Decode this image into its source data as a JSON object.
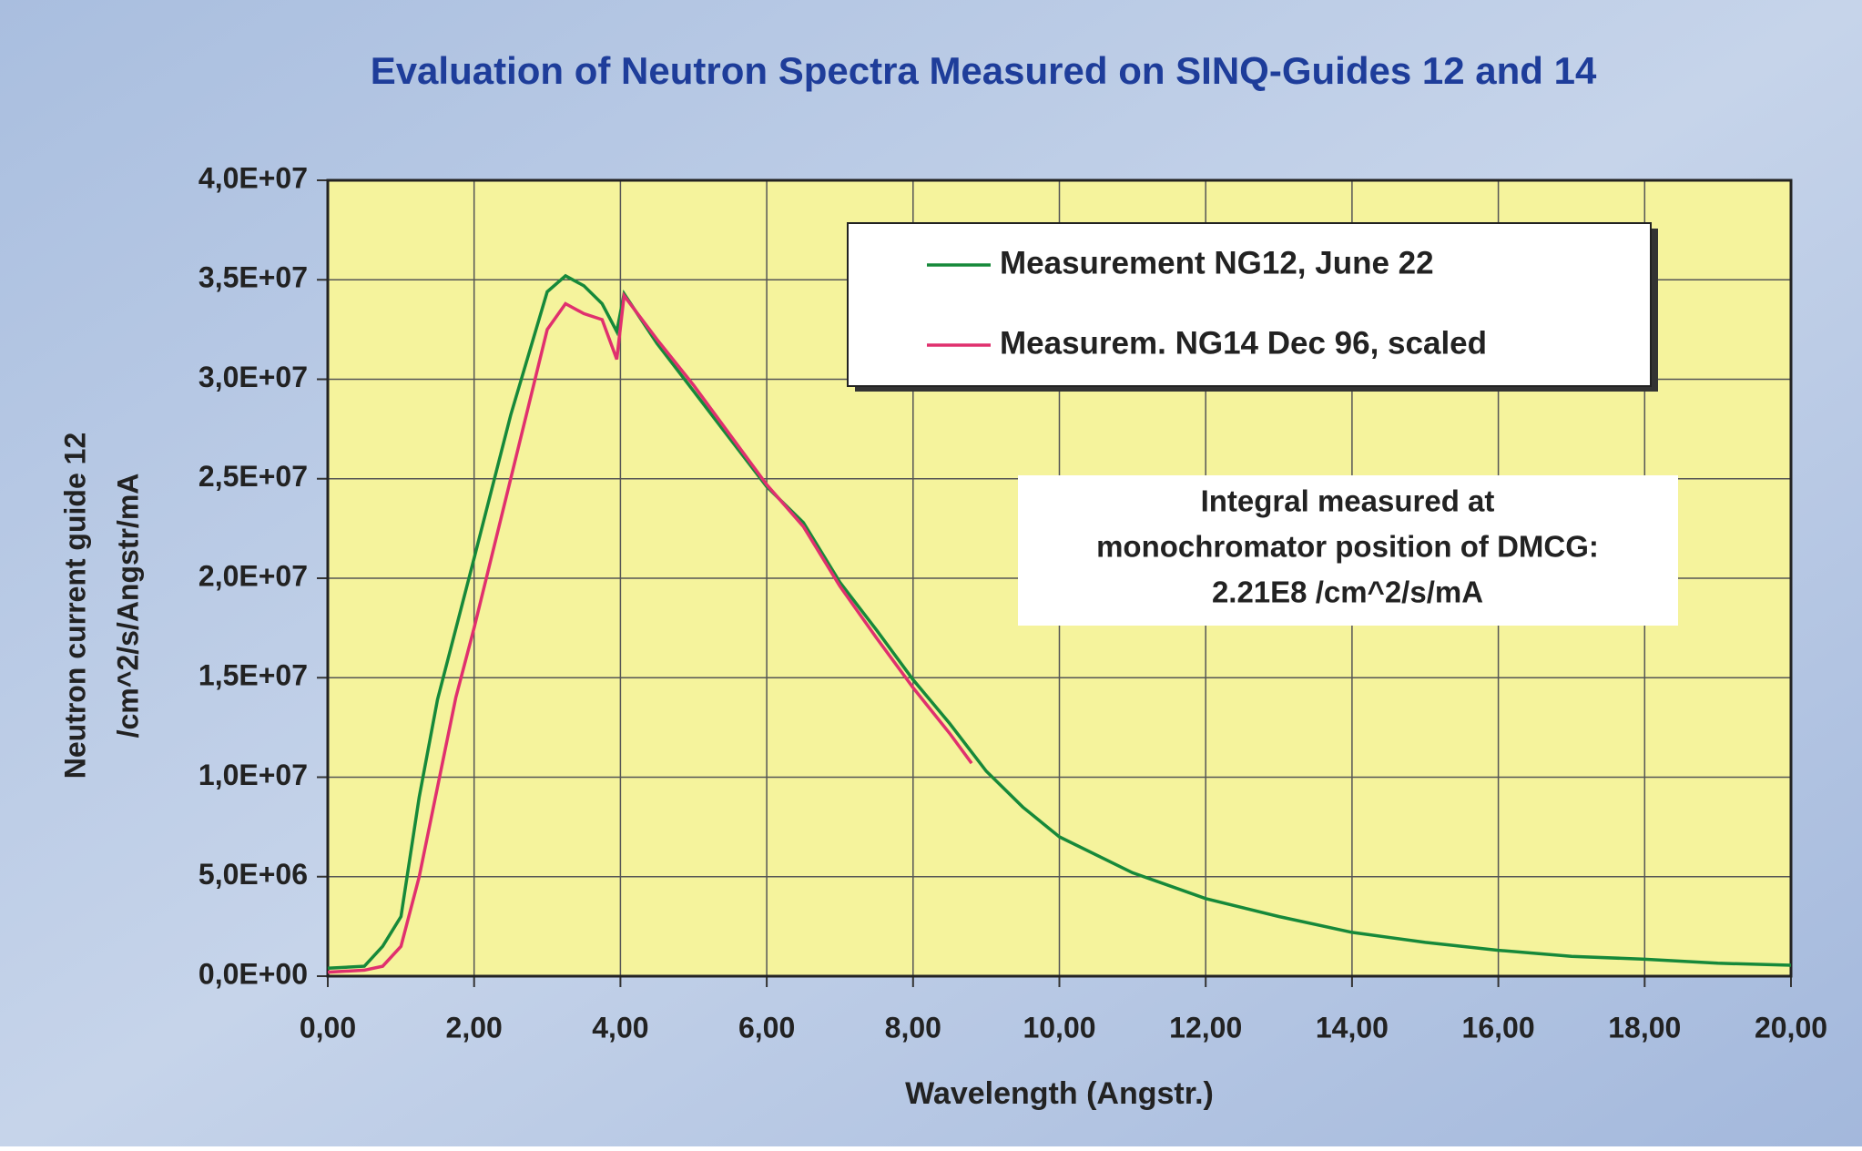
{
  "chart_data": {
    "type": "line",
    "title": "Evaluation of Neutron Spectra Measured on SINQ-Guides 12 and 14",
    "xlabel": "Wavelength (Angstr.)",
    "ylabel": [
      "Neutron current guide 12",
      "/cm^2/s/Angstr/mA"
    ],
    "annotation": [
      "Integral measured at",
      "monochromator position of DMCG:",
      "2.21E8 /cm^2/s/mA"
    ],
    "xlim": [
      0,
      20
    ],
    "ylim": [
      0,
      40000000
    ],
    "xticks": [
      {
        "value": 0,
        "label": "0,00"
      },
      {
        "value": 2,
        "label": "2,00"
      },
      {
        "value": 4,
        "label": "4,00"
      },
      {
        "value": 6,
        "label": "6,00"
      },
      {
        "value": 8,
        "label": "8,00"
      },
      {
        "value": 10,
        "label": "10,00"
      },
      {
        "value": 12,
        "label": "12,00"
      },
      {
        "value": 14,
        "label": "14,00"
      },
      {
        "value": 16,
        "label": "16,00"
      },
      {
        "value": 18,
        "label": "18,00"
      },
      {
        "value": 20,
        "label": "20,00"
      }
    ],
    "yticks": [
      {
        "value": 0,
        "label": "0,0E+00"
      },
      {
        "value": 5000000,
        "label": "5,0E+06"
      },
      {
        "value": 10000000,
        "label": "1,0E+07"
      },
      {
        "value": 15000000,
        "label": "1,5E+07"
      },
      {
        "value": 20000000,
        "label": "2,0E+07"
      },
      {
        "value": 25000000,
        "label": "2,5E+07"
      },
      {
        "value": 30000000,
        "label": "3,0E+07"
      },
      {
        "value": 35000000,
        "label": "3,5E+07"
      },
      {
        "value": 40000000,
        "label": "4,0E+07"
      }
    ],
    "grid": true,
    "legend": "upper right",
    "series": [
      {
        "name": "Measurement NG12, June 22",
        "color": "#16893a",
        "x": [
          0,
          0.5,
          0.75,
          1.0,
          1.25,
          1.5,
          2.0,
          2.5,
          3.0,
          3.25,
          3.5,
          3.75,
          3.95,
          4.05,
          4.5,
          5.0,
          5.5,
          6.0,
          6.5,
          7.0,
          7.5,
          8.0,
          8.5,
          9.0,
          9.5,
          10,
          11,
          12,
          13,
          14,
          15,
          16,
          17,
          18,
          19,
          20
        ],
        "values": [
          400000,
          500000,
          1500000,
          3000000,
          9000000,
          13900000,
          21000000,
          28200000,
          34400000,
          35200000,
          34700000,
          33800000,
          32400000,
          34300000,
          31800000,
          29400000,
          27000000,
          24600000,
          22800000,
          19800000,
          17400000,
          14900000,
          12700000,
          10300000,
          8500000,
          7000000,
          5200000,
          3900000,
          3000000,
          2200000,
          1700000,
          1300000,
          1000000,
          850000,
          650000,
          550000
        ]
      },
      {
        "name": "Measurem. NG14 Dec 96, scaled",
        "color": "#e0306e",
        "x": [
          0,
          0.5,
          0.75,
          1.0,
          1.25,
          1.5,
          1.75,
          2.0,
          2.5,
          3.0,
          3.25,
          3.5,
          3.75,
          3.95,
          4.05,
          4.5,
          5.0,
          5.5,
          6.0,
          6.5,
          7.0,
          7.5,
          8.0,
          8.5,
          8.8
        ],
        "values": [
          200000,
          300000,
          500000,
          1500000,
          5000000,
          9500000,
          14000000,
          17500000,
          25000000,
          32500000,
          33800000,
          33300000,
          33000000,
          31000000,
          34200000,
          32000000,
          29700000,
          27200000,
          24700000,
          22600000,
          19600000,
          17000000,
          14500000,
          12200000,
          10700000
        ]
      }
    ]
  }
}
